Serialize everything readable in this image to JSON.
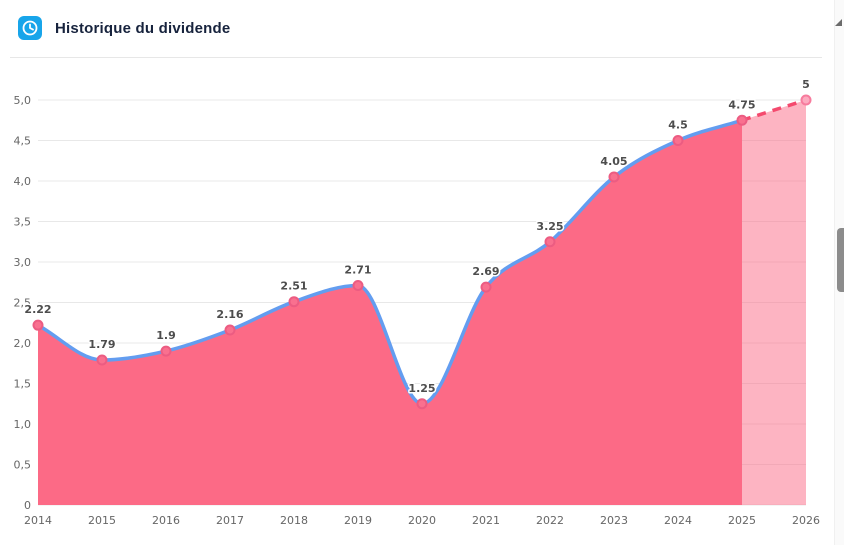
{
  "header": {
    "title": "Historique du dividende"
  },
  "colors": {
    "accent": "#18a5ea",
    "area": "#fc6a86",
    "line": "#639df0",
    "forecast_line": "#f44a6e",
    "grid": "#e8e8e8",
    "dot_fill": "#f9708f",
    "dot_stroke": "#ec5c82",
    "dot_forecast_fill": "#fcaabf",
    "dot_forecast_stroke": "#f77b9d",
    "axis_text": "#666666",
    "label_text": "#4d4d4d"
  },
  "chart_data": {
    "type": "area",
    "title": "Historique du dividende",
    "x": [
      2014,
      2015,
      2016,
      2017,
      2018,
      2019,
      2020,
      2021,
      2022,
      2023,
      2024,
      2025,
      2026
    ],
    "values": [
      2.22,
      1.79,
      1.9,
      2.16,
      2.51,
      2.71,
      1.25,
      2.69,
      3.25,
      4.05,
      4.5,
      4.75,
      5
    ],
    "point_labels": [
      "2.22",
      "1.79",
      "1.9",
      "2.16",
      "2.51",
      "2.71",
      "1.25",
      "2.69",
      "3.25",
      "4.05",
      "4.5",
      "4.75",
      "5"
    ],
    "forecast_from_x": 2025,
    "xlabel": "",
    "ylabel": "",
    "ylim": [
      0,
      5
    ],
    "ytick_step": 0.5,
    "yticks": [
      "0",
      "0,5",
      "1,0",
      "1,5",
      "2,0",
      "2,5",
      "3,0",
      "3,5",
      "4,0",
      "4,5",
      "5,0"
    ],
    "grid": true,
    "legend": "none",
    "notes": "smooth spline, solid area 2014-2025, dashed forecast line with translucent area 2025-2026"
  }
}
